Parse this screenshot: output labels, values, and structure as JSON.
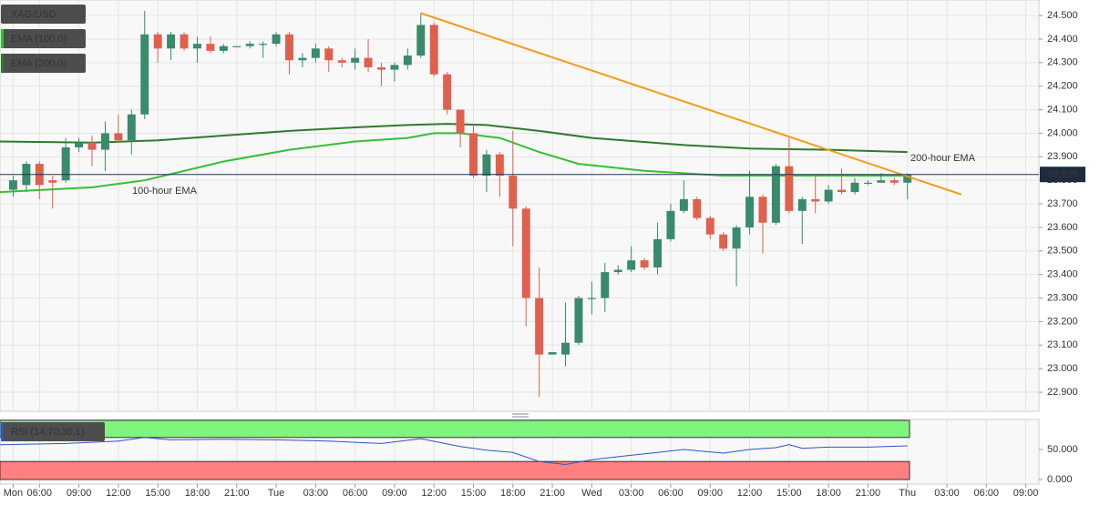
{
  "chart_data": [
    {
      "type": "candlestick",
      "title": "XAG/USD",
      "xlim": [
        3,
        82
      ],
      "ylim": [
        22.819,
        24.566
      ],
      "xticks": [
        {
          "value": 4,
          "label": "Mon"
        },
        {
          "value": 6,
          "label": "06:00"
        },
        {
          "value": 9,
          "label": "09:00"
        },
        {
          "value": 12,
          "label": "12:00"
        },
        {
          "value": 15,
          "label": "15:00"
        },
        {
          "value": 18,
          "label": "18:00"
        },
        {
          "value": 21,
          "label": "21:00"
        },
        {
          "value": 24,
          "label": "Tue"
        },
        {
          "value": 27,
          "label": "03:00"
        },
        {
          "value": 30,
          "label": "06:00"
        },
        {
          "value": 33,
          "label": "09:00"
        },
        {
          "value": 36,
          "label": "12:00"
        },
        {
          "value": 39,
          "label": "15:00"
        },
        {
          "value": 42,
          "label": "18:00"
        },
        {
          "value": 45,
          "label": "21:00"
        },
        {
          "value": 48,
          "label": "Wed"
        },
        {
          "value": 51,
          "label": "03:00"
        },
        {
          "value": 54,
          "label": "06:00"
        },
        {
          "value": 57,
          "label": "09:00"
        },
        {
          "value": 60,
          "label": "12:00"
        },
        {
          "value": 63,
          "label": "15:00"
        },
        {
          "value": 66,
          "label": "18:00"
        },
        {
          "value": 69,
          "label": "21:00"
        },
        {
          "value": 72,
          "label": "Thu"
        },
        {
          "value": 75,
          "label": "03:00"
        },
        {
          "value": 78,
          "label": "06:00"
        },
        {
          "value": 81,
          "label": "09:00"
        }
      ],
      "yticks": [
        {
          "value": 24.5,
          "label": "24.500"
        },
        {
          "value": 24.4,
          "label": "24.400"
        },
        {
          "value": 24.3,
          "label": "24.300"
        },
        {
          "value": 24.2,
          "label": "24.200"
        },
        {
          "value": 24.1,
          "label": "24.100"
        },
        {
          "value": 24.0,
          "label": "24.000"
        },
        {
          "value": 23.9,
          "label": "23.900"
        },
        {
          "value": 23.8,
          "label": "23.800"
        },
        {
          "value": 23.7,
          "label": "23.700"
        },
        {
          "value": 23.6,
          "label": "23.600"
        },
        {
          "value": 23.5,
          "label": "23.500"
        },
        {
          "value": 23.4,
          "label": "23.400"
        },
        {
          "value": 23.3,
          "label": "23.300"
        },
        {
          "value": 23.2,
          "label": "23.200"
        },
        {
          "value": 23.1,
          "label": "23.100"
        },
        {
          "value": 23.0,
          "label": "23.000"
        },
        {
          "value": 22.9,
          "label": "22.900"
        }
      ],
      "grid": true,
      "up_color": "#3a8a6c",
      "down_color": "#e0604e",
      "candles": {
        "x": [
          4,
          5,
          6,
          7,
          8,
          9,
          10,
          11,
          12,
          13,
          14,
          15,
          16,
          17,
          18,
          19,
          20,
          21,
          22,
          23,
          24,
          25,
          26,
          27,
          28,
          29,
          30,
          31,
          32,
          33,
          34,
          35,
          36,
          37,
          38,
          39,
          40,
          41,
          42,
          43,
          44,
          45,
          46,
          47,
          48,
          49,
          50,
          51,
          52,
          53,
          54,
          55,
          56,
          57,
          58,
          59,
          60,
          61,
          62,
          63,
          64,
          65,
          66,
          67,
          68,
          69,
          70,
          71,
          72
        ],
        "open": [
          23.76,
          23.78,
          23.87,
          23.8,
          23.8,
          23.94,
          23.96,
          23.93,
          24.0,
          23.97,
          24.08,
          24.42,
          24.36,
          24.42,
          24.36,
          24.38,
          24.35,
          24.37,
          24.37,
          24.38,
          24.38,
          24.42,
          24.31,
          24.32,
          24.36,
          24.31,
          24.3,
          24.32,
          24.28,
          24.27,
          24.29,
          24.33,
          24.46,
          24.25,
          24.1,
          24.0,
          23.82,
          23.91,
          23.82,
          23.68,
          23.3,
          23.06,
          23.06,
          23.11,
          23.3,
          23.3,
          23.41,
          23.42,
          23.46,
          23.43,
          23.55,
          23.67,
          23.72,
          23.64,
          23.57,
          23.51,
          23.6,
          23.73,
          23.62,
          23.86,
          23.67,
          23.72,
          23.71,
          23.76,
          23.75,
          23.79,
          23.79,
          23.8,
          23.79
        ],
        "high": [
          23.82,
          23.88,
          23.88,
          23.82,
          23.98,
          23.98,
          23.99,
          24.05,
          24.08,
          24.1,
          24.52,
          24.43,
          24.43,
          24.43,
          24.41,
          24.41,
          24.38,
          24.37,
          24.39,
          24.39,
          24.43,
          24.43,
          24.34,
          24.38,
          24.37,
          24.32,
          24.36,
          24.4,
          24.3,
          24.3,
          24.36,
          24.51,
          24.47,
          24.26,
          24.1,
          24.04,
          23.93,
          23.92,
          24.01,
          23.69,
          23.43,
          23.07,
          23.28,
          23.31,
          23.37,
          23.45,
          23.44,
          23.52,
          23.47,
          23.62,
          23.7,
          23.8,
          23.73,
          23.65,
          23.58,
          23.61,
          23.84,
          23.74,
          23.87,
          23.98,
          23.73,
          23.82,
          23.78,
          23.85,
          23.81,
          23.8,
          23.83,
          23.81,
          23.83
        ],
        "low": [
          23.73,
          23.75,
          23.72,
          23.68,
          23.79,
          23.92,
          23.86,
          23.84,
          23.96,
          23.91,
          24.06,
          24.3,
          24.31,
          24.35,
          24.3,
          24.34,
          24.34,
          24.37,
          24.36,
          24.32,
          24.37,
          24.25,
          24.28,
          24.3,
          24.26,
          24.28,
          24.27,
          24.26,
          24.2,
          24.22,
          24.27,
          24.32,
          24.24,
          24.08,
          23.94,
          23.81,
          23.75,
          23.73,
          23.52,
          23.18,
          22.88,
          23.06,
          23.01,
          23.1,
          23.23,
          23.24,
          23.4,
          23.41,
          23.42,
          23.4,
          23.54,
          23.66,
          23.63,
          23.55,
          23.5,
          23.35,
          23.57,
          23.49,
          23.61,
          23.66,
          23.53,
          23.66,
          23.7,
          23.74,
          23.74,
          23.78,
          23.79,
          23.78,
          23.72
        ],
        "close": [
          23.8,
          23.87,
          23.78,
          23.79,
          23.94,
          23.96,
          23.93,
          24.0,
          23.97,
          24.08,
          24.42,
          24.36,
          24.42,
          24.36,
          24.38,
          24.35,
          24.37,
          24.37,
          24.38,
          24.38,
          24.42,
          24.31,
          24.32,
          24.36,
          24.31,
          24.3,
          24.32,
          24.28,
          24.27,
          24.29,
          24.33,
          24.46,
          24.25,
          24.1,
          24.0,
          23.82,
          23.91,
          23.82,
          23.68,
          23.3,
          23.06,
          23.07,
          23.11,
          23.3,
          23.3,
          23.41,
          23.42,
          23.46,
          23.43,
          23.55,
          23.67,
          23.72,
          23.64,
          23.57,
          23.51,
          23.6,
          23.73,
          23.62,
          23.86,
          23.67,
          23.72,
          23.71,
          23.76,
          23.75,
          23.79,
          23.79,
          23.8,
          23.79,
          23.825
        ]
      },
      "series": [
        {
          "name": "EMA (100,0)",
          "color": "#33c033",
          "x": [
            3,
            10,
            14,
            20,
            25,
            30,
            34,
            36,
            38,
            41,
            44,
            47,
            52,
            58,
            63,
            72
          ],
          "values": [
            23.75,
            23.77,
            23.8,
            23.88,
            23.93,
            23.965,
            23.98,
            24.0,
            24.0,
            23.98,
            23.92,
            23.87,
            23.84,
            23.82,
            23.82,
            23.82
          ]
        },
        {
          "name": "EMA (200,0)",
          "color": "#2f7a2f",
          "x": [
            3,
            10,
            15,
            20,
            25,
            30,
            34,
            37,
            40,
            44,
            48,
            55,
            60,
            66,
            72
          ],
          "values": [
            23.965,
            23.96,
            23.97,
            23.99,
            24.01,
            24.025,
            24.035,
            24.04,
            24.035,
            24.01,
            23.98,
            23.95,
            23.935,
            23.93,
            23.92
          ]
        }
      ],
      "annotations": [
        "100-hour EMA",
        "200-hour EMA"
      ],
      "trendline": {
        "color": "#f59a16",
        "x": [
          35,
          76.1
        ],
        "y": [
          24.51,
          23.74
        ]
      },
      "last_price": 23.825
    },
    {
      "type": "line",
      "title": "RSI (14,70,30,1)",
      "xlim": [
        3,
        82
      ],
      "ylim": [
        -7.6,
        100
      ],
      "yticks": [
        {
          "value": 50,
          "label": "50.000"
        },
        {
          "value": 0,
          "label": "0.000"
        }
      ],
      "overbought": 70,
      "oversold": 30,
      "series": [
        {
          "color": "#3550c8",
          "x": [
            3,
            8,
            12,
            14,
            16,
            20,
            24,
            28,
            32,
            35,
            38,
            40,
            42,
            44,
            46,
            48,
            50,
            53,
            55,
            58,
            60,
            62,
            63,
            64,
            66,
            69,
            72
          ],
          "values": [
            58,
            60,
            64,
            70,
            66,
            67,
            66,
            64,
            60,
            68,
            55,
            49,
            45,
            30,
            25,
            33,
            38,
            45,
            50,
            44,
            50,
            53,
            58,
            52,
            54,
            54,
            56
          ]
        }
      ]
    }
  ]
}
